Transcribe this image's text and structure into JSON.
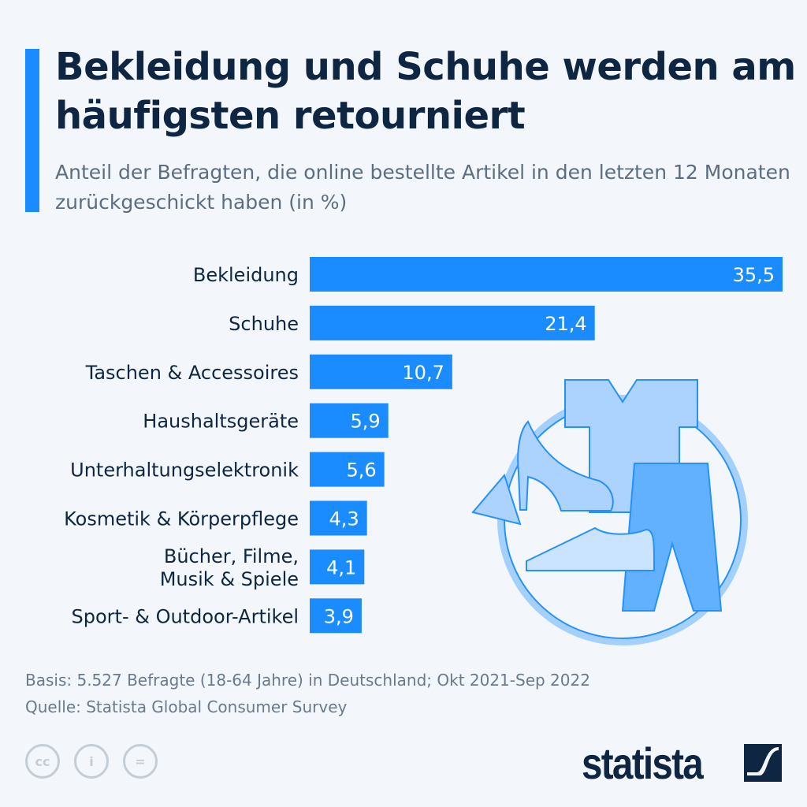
{
  "header": {
    "title": "Bekleidung und Schuhe werden am häufigsten retourniert",
    "subtitle": "Anteil der Befragten, die online bestellte Artikel in den letzten 12 Monaten zurückgeschickt haben (in %)"
  },
  "chart_data": {
    "type": "bar",
    "orientation": "horizontal",
    "title": "Bekleidung und Schuhe werden am häufigsten retourniert",
    "categories": [
      "Bekleidung",
      "Schuhe",
      "Taschen & Accessoires",
      "Haushaltsgeräte",
      "Unterhaltungselektronik",
      "Kosmetik & Körperpflege",
      "Bücher, Filme,\nMusik & Spiele",
      "Sport- & Outdoor-Artikel"
    ],
    "values": [
      35.5,
      21.4,
      10.7,
      5.9,
      5.6,
      4.3,
      4.1,
      3.9
    ],
    "value_labels": [
      "35,5",
      "21,4",
      "10,7",
      "5,9",
      "5,6",
      "4,3",
      "4,1",
      "3,9"
    ],
    "xlabel": "",
    "ylabel": "",
    "xlim": [
      0,
      35.5
    ],
    "grid": false,
    "colors": {
      "bar": "#1a8cff",
      "label": "#0f2642",
      "value": "#ffffff"
    }
  },
  "footer": {
    "basis": "Basis: 5.527 Befragte (18-64 Jahre) in Deutschland; Okt 2021-Sep 2022",
    "source": "Quelle: Statista Global Consumer Survey",
    "cc_labels": [
      "cc",
      "i",
      "="
    ],
    "brand": "statista"
  }
}
